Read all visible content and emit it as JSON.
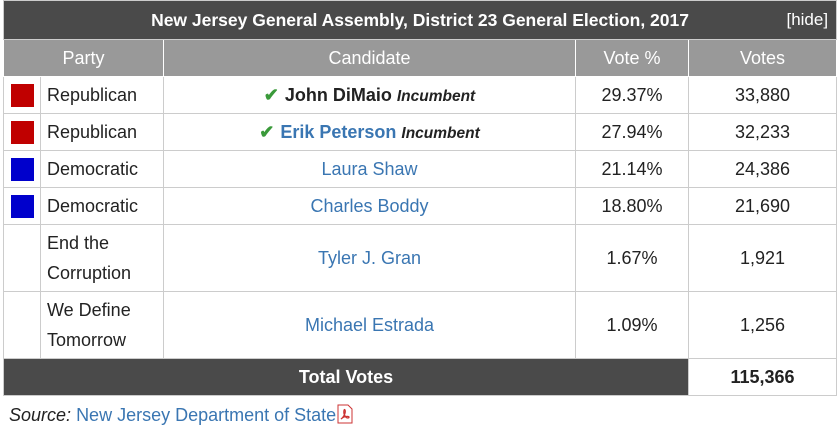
{
  "header": {
    "title": "New Jersey General Assembly, District 23 General Election, 2017",
    "hide": "[hide]"
  },
  "table": {
    "columns": [
      "Party",
      "Candidate",
      "Vote %",
      "Votes"
    ],
    "rows": [
      {
        "party": "Republican",
        "color": "#c00000",
        "candidate": "John DiMaio",
        "incumbent": "Incumbent",
        "winner": true,
        "link": false,
        "vote_pct": "29.37%",
        "votes": "33,880"
      },
      {
        "party": "Republican",
        "color": "#c00000",
        "candidate": "Erik Peterson",
        "incumbent": "Incumbent",
        "winner": true,
        "link": true,
        "vote_pct": "27.94%",
        "votes": "32,233"
      },
      {
        "party": "Democratic",
        "color": "#0000cc",
        "candidate": "Laura Shaw",
        "winner": false,
        "link": true,
        "vote_pct": "21.14%",
        "votes": "24,386"
      },
      {
        "party": "Democratic",
        "color": "#0000cc",
        "candidate": "Charles Boddy",
        "winner": false,
        "link": true,
        "vote_pct": "18.80%",
        "votes": "21,690"
      },
      {
        "party": "End the Corruption",
        "candidate": "Tyler J. Gran",
        "winner": false,
        "link": true,
        "vote_pct": "1.67%",
        "votes": "1,921"
      },
      {
        "party": "We Define Tomorrow",
        "candidate": "Michael Estrada",
        "winner": false,
        "link": true,
        "vote_pct": "1.09%",
        "votes": "1,256"
      }
    ],
    "total": {
      "label": "Total Votes",
      "votes": "115,366"
    }
  },
  "source": {
    "label": "Source:",
    "link": "New Jersey Department of State"
  }
}
